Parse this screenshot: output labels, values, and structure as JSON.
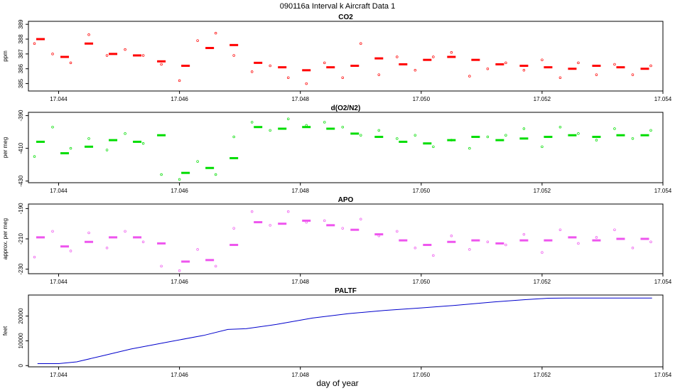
{
  "figure": {
    "title": "090116a   Interval k Aircraft Data 1",
    "xlabel": "day of year"
  },
  "chart_data": [
    {
      "type": "scatter",
      "title": "CO2",
      "ylabel": "ppm",
      "color": "#ff0000",
      "xlim": [
        17.0435,
        17.054
      ],
      "xticks": [
        "17.044",
        "17.046",
        "17.048",
        "17.050",
        "17.052",
        "17.054"
      ],
      "ylim": [
        384.5,
        389.2
      ],
      "yticks": [
        "385",
        "386",
        "387",
        "388",
        "389"
      ],
      "series": [
        {
          "style": "dash",
          "x": [
            17.0437,
            17.0441,
            17.0445,
            17.0449,
            17.0453,
            17.0457,
            17.0461,
            17.0465,
            17.0469,
            17.0473,
            17.0477,
            17.0481,
            17.0485,
            17.0489,
            17.0493,
            17.0497,
            17.0501,
            17.0505,
            17.0509,
            17.0513,
            17.0517,
            17.0521,
            17.0525,
            17.0529,
            17.0533,
            17.0537
          ],
          "y": [
            388.0,
            386.8,
            387.7,
            387.0,
            386.9,
            386.5,
            386.2,
            387.4,
            387.6,
            386.4,
            386.1,
            385.9,
            386.1,
            386.2,
            386.7,
            386.3,
            386.6,
            386.8,
            386.6,
            386.3,
            386.2,
            386.1,
            386.0,
            386.2,
            386.1,
            386.0
          ]
        },
        {
          "style": "point",
          "x": [
            17.0436,
            17.0439,
            17.0442,
            17.0445,
            17.0448,
            17.0451,
            17.0454,
            17.0457,
            17.046,
            17.0463,
            17.0466,
            17.0469,
            17.0472,
            17.0475,
            17.0478,
            17.0481,
            17.0484,
            17.0487,
            17.049,
            17.0493,
            17.0496,
            17.0499,
            17.0502,
            17.0505,
            17.0508,
            17.0511,
            17.0514,
            17.0517,
            17.052,
            17.0523,
            17.0526,
            17.0529,
            17.0532,
            17.0535,
            17.0538
          ],
          "y": [
            387.7,
            387.0,
            386.4,
            388.3,
            386.9,
            387.3,
            386.9,
            386.3,
            385.2,
            387.9,
            388.4,
            386.9,
            385.8,
            386.2,
            385.4,
            385.0,
            386.4,
            385.4,
            387.7,
            385.6,
            386.8,
            385.9,
            386.8,
            387.1,
            385.5,
            386.0,
            386.4,
            385.9,
            386.6,
            385.4,
            386.4,
            385.6,
            386.3,
            385.6,
            386.2
          ]
        }
      ]
    },
    {
      "type": "scatter",
      "title": "d(O2/N2)",
      "ylabel": "per meg",
      "color": "#00dd00",
      "xlim": [
        17.0435,
        17.054
      ],
      "xticks": [
        "17.044",
        "17.046",
        "17.048",
        "17.050",
        "17.052",
        "17.054"
      ],
      "ylim": [
        -431,
        -388
      ],
      "yticks": [
        "-430",
        "-410",
        "-390"
      ],
      "series": [
        {
          "style": "dash",
          "x": [
            17.0437,
            17.0441,
            17.0445,
            17.0449,
            17.0453,
            17.0457,
            17.0461,
            17.0465,
            17.0469,
            17.0473,
            17.0477,
            17.0481,
            17.0485,
            17.0489,
            17.0493,
            17.0497,
            17.0501,
            17.0505,
            17.0509,
            17.0513,
            17.0517,
            17.0521,
            17.0525,
            17.0529,
            17.0533,
            17.0537
          ],
          "y": [
            -406,
            -413,
            -409,
            -405,
            -406,
            -402,
            -425,
            -422,
            -416,
            -397,
            -398,
            -397,
            -398,
            -401,
            -403,
            -406,
            -407,
            -405,
            -403,
            -405,
            -404,
            -403,
            -402,
            -403,
            -402,
            -402
          ]
        },
        {
          "style": "point",
          "x": [
            17.0436,
            17.0439,
            17.0442,
            17.0445,
            17.0448,
            17.0451,
            17.0454,
            17.0457,
            17.046,
            17.0463,
            17.0466,
            17.0469,
            17.0472,
            17.0475,
            17.0478,
            17.0481,
            17.0484,
            17.0487,
            17.049,
            17.0493,
            17.0496,
            17.0499,
            17.0502,
            17.0505,
            17.0508,
            17.0511,
            17.0514,
            17.0517,
            17.052,
            17.0523,
            17.0526,
            17.0529,
            17.0532,
            17.0535,
            17.0538
          ],
          "y": [
            -415,
            -397,
            -410,
            -404,
            -411,
            -401,
            -407,
            -426,
            -429,
            -418,
            -426,
            -403,
            -394,
            -399,
            -392,
            -396,
            -394,
            -397,
            -402,
            -399,
            -404,
            -402,
            -409,
            -405,
            -410,
            -403,
            -402,
            -398,
            -409,
            -397,
            -401,
            -405,
            -398,
            -404,
            -399
          ]
        }
      ]
    },
    {
      "type": "scatter",
      "title": "APO",
      "ylabel": "approx. per meg",
      "color": "#ee55ee",
      "xlim": [
        17.0435,
        17.054
      ],
      "xticks": [
        "17.044",
        "17.046",
        "17.048",
        "17.050",
        "17.052",
        "17.054"
      ],
      "ylim": [
        -233,
        -187
      ],
      "yticks": [
        "-230",
        "-210",
        "-190"
      ],
      "series": [
        {
          "style": "dash",
          "x": [
            17.0437,
            17.0441,
            17.0445,
            17.0449,
            17.0453,
            17.0457,
            17.0461,
            17.0465,
            17.0469,
            17.0473,
            17.0477,
            17.0481,
            17.0485,
            17.0489,
            17.0493,
            17.0497,
            17.0501,
            17.0505,
            17.0509,
            17.0513,
            17.0517,
            17.0521,
            17.0525,
            17.0529,
            17.0533,
            17.0537
          ],
          "y": [
            -209,
            -215,
            -212,
            -209,
            -209,
            -213,
            -225,
            -224,
            -214,
            -199,
            -200,
            -198,
            -201,
            -204,
            -207,
            -211,
            -214,
            -212,
            -211,
            -213,
            -211,
            -211,
            -209,
            -211,
            -210,
            -210
          ]
        },
        {
          "style": "point",
          "x": [
            17.0436,
            17.0439,
            17.0442,
            17.0445,
            17.0448,
            17.0451,
            17.0454,
            17.0457,
            17.046,
            17.0463,
            17.0466,
            17.0469,
            17.0472,
            17.0475,
            17.0478,
            17.0481,
            17.0484,
            17.0487,
            17.049,
            17.0493,
            17.0496,
            17.0499,
            17.0502,
            17.0505,
            17.0508,
            17.0511,
            17.0514,
            17.0517,
            17.052,
            17.0523,
            17.0526,
            17.0529,
            17.0532,
            17.0535,
            17.0538
          ],
          "y": [
            -222,
            -205,
            -218,
            -206,
            -216,
            -205,
            -212,
            -228,
            -231,
            -217,
            -228,
            -203,
            -192,
            -201,
            -192,
            -199,
            -198,
            -203,
            -197,
            -208,
            -205,
            -216,
            -221,
            -208,
            -217,
            -212,
            -214,
            -207,
            -219,
            -204,
            -213,
            -209,
            -204,
            -216,
            -212
          ]
        }
      ]
    },
    {
      "type": "line",
      "title": "PALTF",
      "ylabel": "feet",
      "color": "#0000cc",
      "xlim": [
        17.0435,
        17.054
      ],
      "xticks": [
        "17.044",
        "17.046",
        "17.048",
        "17.050",
        "17.052",
        "17.054"
      ],
      "ylim": [
        -500,
        28500
      ],
      "yticks": [
        "0",
        "10000",
        "20000"
      ],
      "x": [
        17.04365,
        17.044,
        17.0443,
        17.0447,
        17.0452,
        17.0458,
        17.0464,
        17.0468,
        17.0471,
        17.0476,
        17.0482,
        17.0488,
        17.0494,
        17.05,
        17.0506,
        17.0512,
        17.0517,
        17.0521,
        17.0524,
        17.05382
      ],
      "y": [
        800,
        800,
        1500,
        3800,
        6700,
        9500,
        12200,
        14600,
        14900,
        16600,
        19200,
        21000,
        22300,
        23300,
        24400,
        25700,
        26600,
        27200,
        27300,
        27300
      ]
    }
  ]
}
